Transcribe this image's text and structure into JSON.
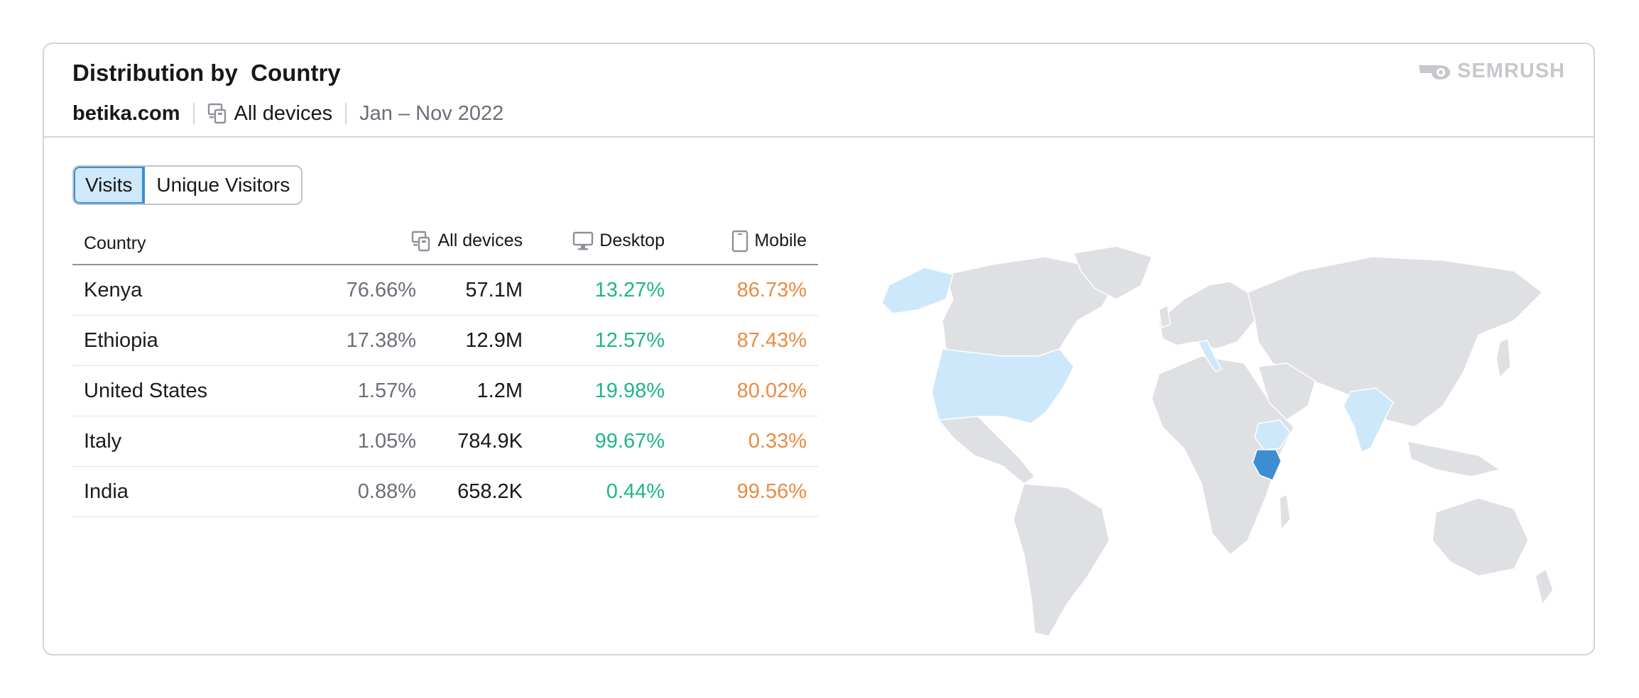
{
  "header": {
    "title": "Distribution by  Country",
    "domain": "betika.com",
    "device": "All devices",
    "period": "Jan – Nov 2022",
    "logo": "SEMRUSH"
  },
  "toggle": {
    "options": [
      {
        "label": "Visits",
        "active": true
      },
      {
        "label": "Unique Visitors",
        "active": false
      }
    ]
  },
  "table": {
    "headers": {
      "country": "Country",
      "all": "All devices",
      "desktop": "Desktop",
      "mobile": "Mobile"
    },
    "rows": [
      {
        "country": "Kenya",
        "share": "76.66%",
        "volume": "57.1M",
        "desktop": "13.27%",
        "mobile": "86.73%"
      },
      {
        "country": "Ethiopia",
        "share": "17.38%",
        "volume": "12.9M",
        "desktop": "12.57%",
        "mobile": "87.43%"
      },
      {
        "country": "United States",
        "share": "1.57%",
        "volume": "1.2M",
        "desktop": "19.98%",
        "mobile": "80.02%"
      },
      {
        "country": "Italy",
        "share": "1.05%",
        "volume": "784.9K",
        "desktop": "99.67%",
        "mobile": "0.33%"
      },
      {
        "country": "India",
        "share": "0.88%",
        "volume": "658.2K",
        "desktop": "0.44%",
        "mobile": "99.56%"
      }
    ]
  },
  "colors": {
    "desktop": "#1fb589",
    "mobile": "#ea8b43",
    "land": "#dfe0e4",
    "highlight_light": "#cde8fb",
    "highlight_dark": "#3c8dd2"
  }
}
